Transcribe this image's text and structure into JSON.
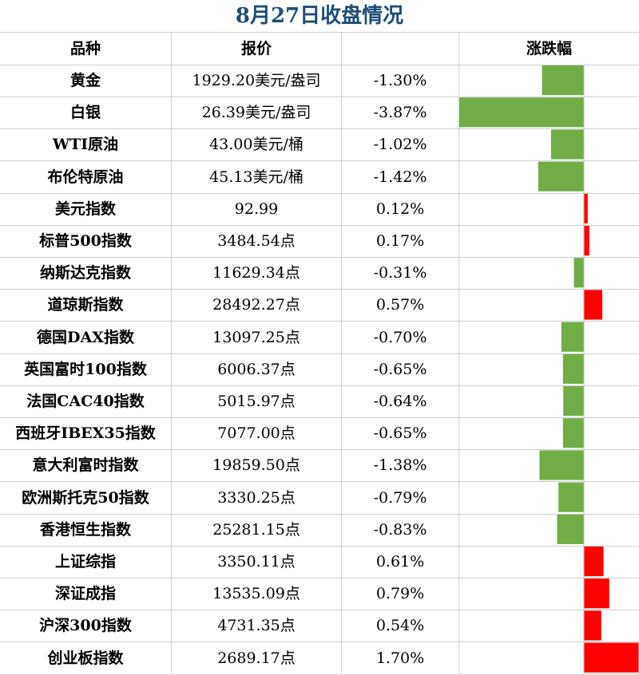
{
  "chart_data": {
    "type": "bar",
    "title": "8月27日收盘情况",
    "columns": [
      "品种",
      "报价",
      "涨跌幅"
    ],
    "colors": {
      "positive": "#ff0000",
      "negative": "#70ad47"
    },
    "rows": [
      {
        "name": "黄金",
        "price": "1929.20美元/盎司",
        "change_label": "-1.30%",
        "change": -1.3
      },
      {
        "name": "白银",
        "price": "26.39美元/盎司",
        "change_label": "-3.87%",
        "change": -3.87
      },
      {
        "name": "WTI原油",
        "price": "43.00美元/桶",
        "change_label": "-1.02%",
        "change": -1.02
      },
      {
        "name": "布伦特原油",
        "price": "45.13美元/桶",
        "change_label": "-1.42%",
        "change": -1.42
      },
      {
        "name": "美元指数",
        "price": "92.99",
        "change_label": "0.12%",
        "change": 0.12
      },
      {
        "name": "标普500指数",
        "price": "3484.54点",
        "change_label": "0.17%",
        "change": 0.17
      },
      {
        "name": "纳斯达克指数",
        "price": "11629.34点",
        "change_label": "-0.31%",
        "change": -0.31
      },
      {
        "name": "道琼斯指数",
        "price": "28492.27点",
        "change_label": "0.57%",
        "change": 0.57
      },
      {
        "name": "德国DAX指数",
        "price": "13097.25点",
        "change_label": "-0.70%",
        "change": -0.7
      },
      {
        "name": "英国富时100指数",
        "price": "6006.37点",
        "change_label": "-0.65%",
        "change": -0.65
      },
      {
        "name": "法国CAC40指数",
        "price": "5015.97点",
        "change_label": "-0.64%",
        "change": -0.64
      },
      {
        "name": "西班牙IBEX35指数",
        "price": "7077.00点",
        "change_label": "-0.65%",
        "change": -0.65
      },
      {
        "name": "意大利富时指数",
        "price": "19859.50点",
        "change_label": "-1.38%",
        "change": -1.38
      },
      {
        "name": "欧洲斯托克50指数",
        "price": "3330.25点",
        "change_label": "-0.79%",
        "change": -0.79
      },
      {
        "name": "香港恒生指数",
        "price": "25281.15点",
        "change_label": "-0.83%",
        "change": -0.83
      },
      {
        "name": "上证综指",
        "price": "3350.11点",
        "change_label": "0.61%",
        "change": 0.61
      },
      {
        "name": "深证成指",
        "price": "13535.09点",
        "change_label": "0.79%",
        "change": 0.79
      },
      {
        "name": "沪深300指数",
        "price": "4731.35点",
        "change_label": "0.54%",
        "change": 0.54
      },
      {
        "name": "创业板指数",
        "price": "2689.17点",
        "change_label": "1.70%",
        "change": 1.7
      }
    ]
  }
}
